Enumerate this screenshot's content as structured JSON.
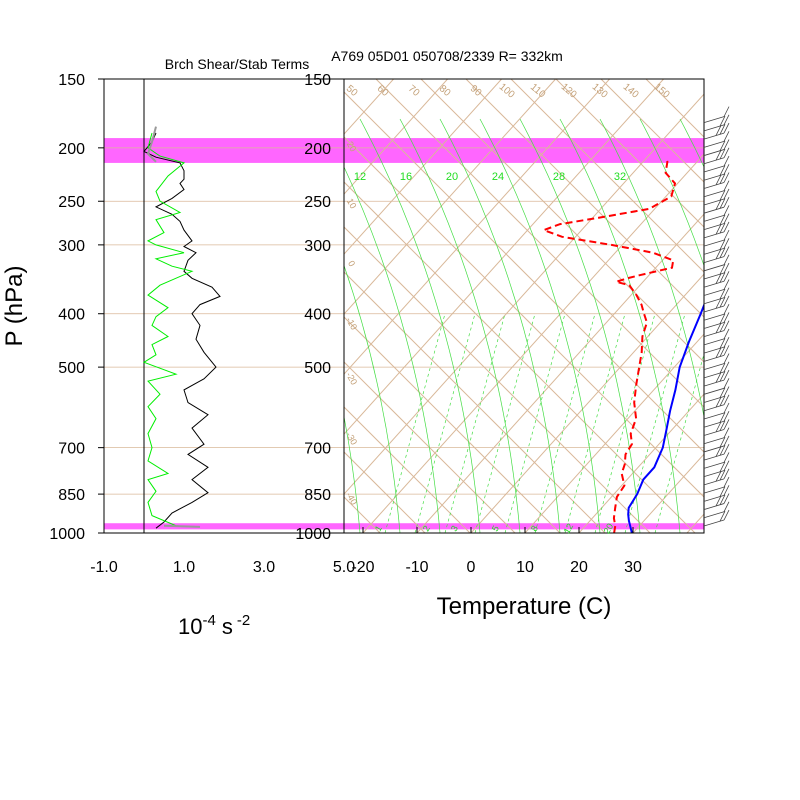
{
  "chart_data": [
    {
      "type": "line",
      "title": "Brch Shear/Stab Terms",
      "xlabel": "10^-4 s^-2",
      "xlabel_base": "10",
      "xlabel_exp1": "-4",
      "xlabel_unit": "s",
      "xlabel_exp2": "-2",
      "ylabel": "P (hPa)",
      "x_ticks": [
        "-1.0",
        "1.0",
        "3.0",
        "5.0"
      ],
      "x_tick_values": [
        -1.0,
        1.0,
        3.0,
        5.0
      ],
      "xlim": [
        -1.0,
        5.0
      ],
      "ylim": [
        1000,
        150
      ],
      "y_scale": "log",
      "y_ticks": [
        150,
        200,
        250,
        300,
        400,
        500,
        700,
        850,
        1000
      ],
      "grid": true,
      "series": [
        {
          "name": "",
          "color": "#000000",
          "points": [
            [
              0.3,
              188
            ],
            [
              0.2,
              195
            ],
            [
              0.0,
              203
            ],
            [
              0.3,
              208
            ],
            [
              0.9,
              213
            ],
            [
              1.0,
              220
            ],
            [
              1.0,
              228
            ],
            [
              0.9,
              232
            ],
            [
              1.0,
              238
            ],
            [
              0.7,
              247
            ],
            [
              0.3,
              256
            ],
            [
              0.7,
              264
            ],
            [
              0.9,
              272
            ],
            [
              1.0,
              282
            ],
            [
              1.2,
              295
            ],
            [
              1.0,
              302
            ],
            [
              1.3,
              310
            ],
            [
              1.1,
              320
            ],
            [
              1.0,
              335
            ],
            [
              1.2,
              345
            ],
            [
              1.7,
              358
            ],
            [
              1.9,
              372
            ],
            [
              1.4,
              385
            ],
            [
              1.2,
              400
            ],
            [
              1.4,
              420
            ],
            [
              1.3,
              445
            ],
            [
              1.5,
              470
            ],
            [
              1.8,
              500
            ],
            [
              1.5,
              525
            ],
            [
              1.0,
              550
            ],
            [
              1.1,
              580
            ],
            [
              1.6,
              610
            ],
            [
              1.2,
              645
            ],
            [
              1.5,
              690
            ],
            [
              1.1,
              720
            ],
            [
              1.6,
              760
            ],
            [
              1.2,
              800
            ],
            [
              1.6,
              845
            ],
            [
              1.2,
              880
            ],
            [
              0.7,
              920
            ],
            [
              0.5,
              955
            ],
            [
              0.3,
              980
            ]
          ]
        },
        {
          "name": "",
          "color": "#00ee00",
          "points": [
            [
              0.2,
              188
            ],
            [
              0.1,
              200
            ],
            [
              0.4,
              207
            ],
            [
              1.0,
              213
            ],
            [
              0.6,
              225
            ],
            [
              0.3,
              240
            ],
            [
              0.4,
              250
            ],
            [
              0.9,
              262
            ],
            [
              0.3,
              270
            ],
            [
              0.5,
              285
            ],
            [
              0.1,
              295
            ],
            [
              0.3,
              300
            ],
            [
              1.0,
              310
            ],
            [
              0.3,
              318
            ],
            [
              0.7,
              328
            ],
            [
              1.2,
              335
            ],
            [
              0.4,
              355
            ],
            [
              0.1,
              370
            ],
            [
              0.6,
              390
            ],
            [
              0.3,
              405
            ],
            [
              0.2,
              420
            ],
            [
              0.6,
              440
            ],
            [
              0.2,
              455
            ],
            [
              0.3,
              475
            ],
            [
              0.0,
              490
            ],
            [
              0.8,
              515
            ],
            [
              0.1,
              530
            ],
            [
              0.4,
              560
            ],
            [
              0.1,
              590
            ],
            [
              0.3,
              620
            ],
            [
              0.1,
              660
            ],
            [
              0.2,
              700
            ],
            [
              0.1,
              740
            ],
            [
              0.6,
              780
            ],
            [
              0.1,
              800
            ],
            [
              0.3,
              840
            ],
            [
              0.1,
              880
            ],
            [
              0.2,
              930
            ],
            [
              0.8,
              970
            ],
            [
              1.2,
              975
            ]
          ]
        },
        {
          "name": "",
          "color": "#999999",
          "points": [
            [
              0.3,
              183
            ],
            [
              0.2,
              195
            ],
            [
              0.1,
              205
            ],
            [
              0.3,
              212
            ]
          ]
        },
        {
          "name": "",
          "color": "#999999",
          "points": [
            [
              0.5,
              970
            ],
            [
              1.4,
              975
            ]
          ]
        }
      ]
    },
    {
      "type": "line",
      "title": "A769 05D01 050708/2339 R= 332km",
      "xlabel": "Temperature (C)",
      "x_ticks": [
        "-20",
        "-10",
        "0",
        "10",
        "20",
        "30"
      ],
      "x_tick_values": [
        -20,
        -10,
        0,
        10,
        20,
        30
      ],
      "xlim": [
        -23,
        43
      ],
      "y_ticks": [
        "150",
        "200",
        "250",
        "300",
        "400",
        "500",
        "700",
        "850",
        "1000"
      ],
      "y_tick_values": [
        150,
        200,
        250,
        300,
        400,
        500,
        700,
        850,
        1000
      ],
      "ylim": [
        1000,
        150
      ],
      "y_scale": "log",
      "skewt": true,
      "grid": true,
      "series": [
        {
          "name": "",
          "color": "#0000ff",
          "style": "solid",
          "points": [
            [
              29.8,
              1000
            ],
            [
              28.5,
              975
            ],
            [
              27.2,
              950
            ],
            [
              26.0,
              925
            ],
            [
              25.0,
              900
            ],
            [
              24.3,
              850
            ],
            [
              23.0,
              800
            ],
            [
              23.0,
              760
            ],
            [
              21.3,
              700
            ],
            [
              19.0,
              650
            ],
            [
              16.5,
              600
            ],
            [
              14.0,
              550
            ],
            [
              11.0,
              500
            ],
            [
              8.5,
              450
            ],
            [
              6.0,
              400
            ],
            [
              3.0,
              350
            ],
            [
              -1.0,
              300
            ],
            [
              -6.0,
              250
            ],
            [
              -9.5,
              225
            ],
            [
              -13.0,
              200
            ],
            [
              -17.5,
              180
            ]
          ]
        },
        {
          "name": "",
          "color": "#ff0000",
          "style": "dashed",
          "points": [
            [
              26.5,
              1000
            ],
            [
              25.5,
              970
            ],
            [
              24.0,
              940
            ],
            [
              22.5,
              900
            ],
            [
              21.0,
              860
            ],
            [
              20.5,
              820
            ],
            [
              18.0,
              780
            ],
            [
              17.0,
              750
            ],
            [
              15.5,
              720
            ],
            [
              15.0,
              690
            ],
            [
              13.0,
              660
            ],
            [
              11.5,
              620
            ],
            [
              8.5,
              580
            ],
            [
              6.0,
              540
            ],
            [
              3.5,
              500
            ],
            [
              1.5,
              470
            ],
            [
              -1.0,
              440
            ],
            [
              -2.5,
              415
            ],
            [
              -4.5,
              400
            ],
            [
              -6.5,
              385
            ],
            [
              -9.0,
              370
            ],
            [
              -12.0,
              355
            ],
            [
              -15.0,
              350
            ],
            [
              -13.5,
              345
            ],
            [
              -11.5,
              340
            ],
            [
              -7.0,
              330
            ],
            [
              -8.0,
              320
            ],
            [
              -13.0,
              310
            ],
            [
              -22.0,
              300
            ],
            [
              -32.5,
              290
            ],
            [
              -37.0,
              282
            ],
            [
              -35.0,
              275
            ],
            [
              -29.0,
              268
            ],
            [
              -21.0,
              258
            ],
            [
              -19.0,
              245
            ],
            [
              -20.5,
              232
            ],
            [
              -24.0,
              222
            ],
            [
              -25.5,
              212
            ],
            [
              -26.5,
              208
            ]
          ]
        }
      ],
      "green_labels": [
        "12",
        "16",
        "20",
        "24",
        "28",
        "32"
      ],
      "tan_labels": [
        "50",
        "60",
        "70",
        "80",
        "90",
        "100",
        "110",
        "120",
        "130",
        "140",
        "150"
      ],
      "bottom_green_labels": [
        "1",
        "2",
        "3",
        "5",
        "8",
        "12",
        "20"
      ],
      "left_tan_labels": [
        "20",
        "10",
        "0",
        "-10",
        "-20",
        "-30",
        "-40"
      ]
    }
  ],
  "colors": {
    "highlight_band": "#ff66ff",
    "grid_tan": "#d9b899",
    "mixing_green": "#44dd44",
    "green_label": "#22dd22",
    "tan_label": "#c4a27a",
    "temp_line": "#0000ff",
    "dewpoint_line": "#ff0000",
    "shear_line": "#000000",
    "stab_line": "#00ee00"
  }
}
